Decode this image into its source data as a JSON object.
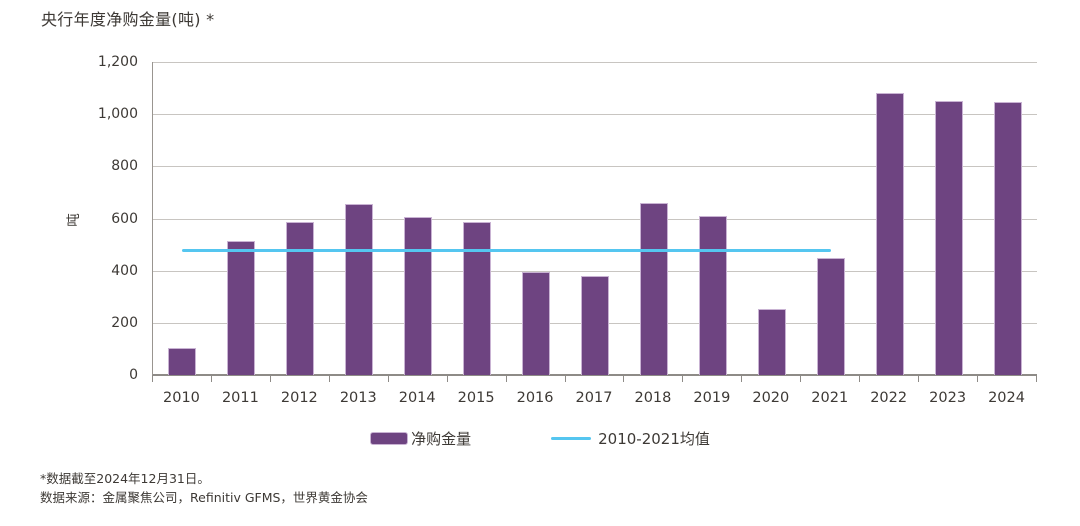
{
  "page": {
    "background": "#FFFFFF"
  },
  "chart": {
    "title": "央行年度净购金量(吨) *",
    "y_axis_title": "吨",
    "footnote_line1": "*数据截至2024年12月31日。",
    "footnote_line2": "数据来源：金属聚焦公司，Refinitiv GFMS，世界黄金协会"
  },
  "legend": {
    "bars_label": "净购金量",
    "line_label": "2010-2021均值"
  },
  "colors": {
    "bar_fill": "#6E4481",
    "bar_border": "#C9B3D3",
    "avg_line": "#55C6F0",
    "gridline": "#C8C5C1",
    "axis": "#8E8B87",
    "text": "#3D3935"
  },
  "chart_data": {
    "type": "bar",
    "title": "央行年度净购金量(吨) *",
    "xlabel": "",
    "ylabel": "吨",
    "categories": [
      "2010",
      "2011",
      "2012",
      "2013",
      "2014",
      "2015",
      "2016",
      "2017",
      "2018",
      "2019",
      "2020",
      "2021",
      "2022",
      "2023",
      "2024"
    ],
    "series": [
      {
        "name": "净购金量",
        "type": "bar",
        "values": [
          105,
          515,
          585,
          655,
          605,
          585,
          395,
          380,
          658,
          608,
          253,
          450,
          1082,
          1050,
          1045
        ]
      },
      {
        "name": "2010-2021均值",
        "type": "hline",
        "value": 480,
        "span_categories": [
          "2010",
          "2021"
        ]
      }
    ],
    "ylim": [
      0,
      1200
    ],
    "yticks": [
      0,
      200,
      400,
      600,
      800,
      1000,
      1200
    ],
    "ytick_labels": [
      "0",
      "200",
      "400",
      "600",
      "800",
      "1,000",
      "1,200"
    ],
    "grid": true,
    "legend_position": "bottom",
    "footnotes": [
      "*数据截至2024年12月31日。",
      "数据来源：金属聚焦公司，Refinitiv GFMS，世界黄金协会"
    ]
  }
}
